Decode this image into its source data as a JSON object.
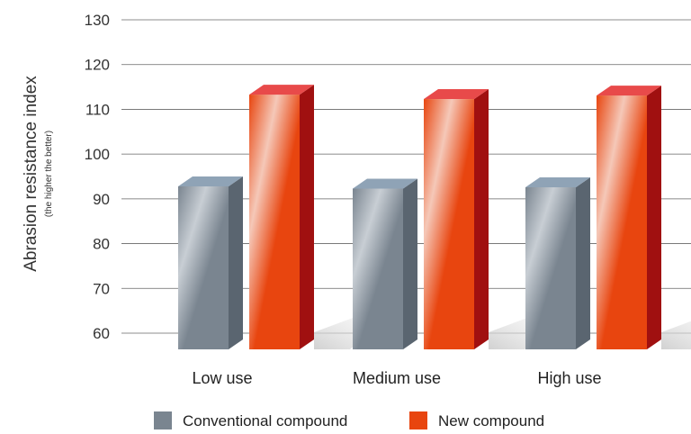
{
  "chart_data": {
    "type": "bar",
    "categories": [
      "Low use",
      "Medium use",
      "High use"
    ],
    "series": [
      {
        "name": "Conventional compound",
        "values": [
          95,
          94.5,
          94.8
        ],
        "color": "#7a8590",
        "top_color": "#8fa3b6",
        "side_color": "#5a6570"
      },
      {
        "name": "New compound",
        "values": [
          115.5,
          114.5,
          115.3
        ],
        "color": "#e8450f",
        "top_color": "#e84a4a",
        "side_color": "#a01010"
      }
    ],
    "ylabel": "Abrasion resistance index",
    "ylabel_sub": "(the higher the better)",
    "ylim": [
      60,
      130
    ],
    "yticks": [
      60,
      70,
      80,
      90,
      100,
      110,
      120,
      130
    ],
    "grid": true,
    "legend": "bottom"
  }
}
